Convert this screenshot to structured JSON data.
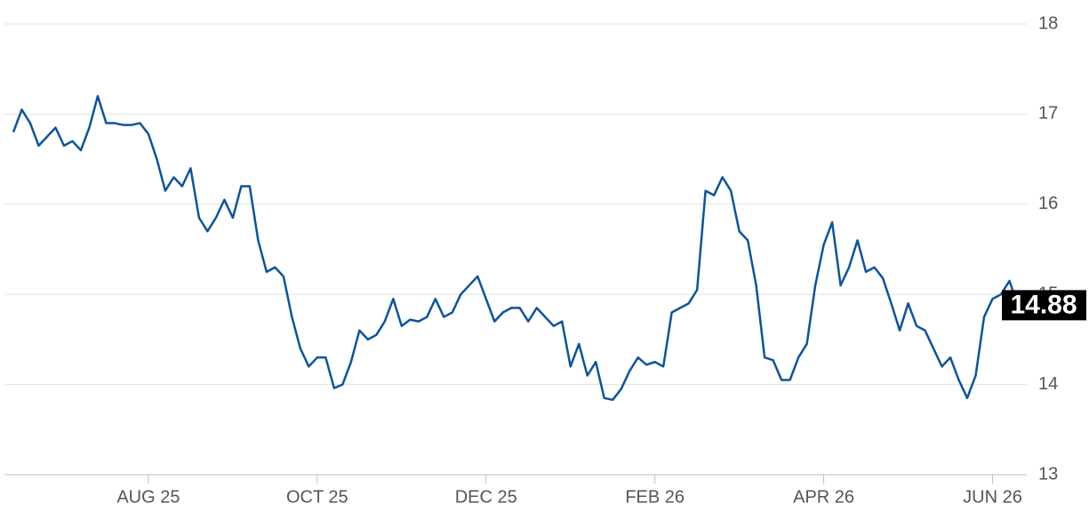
{
  "chart_data": {
    "type": "line",
    "categories": [
      null,
      null,
      null,
      null,
      null,
      null,
      null,
      null,
      null,
      null,
      null,
      null,
      null,
      null,
      null,
      null,
      "AUG 25",
      null,
      null,
      null,
      null,
      null,
      null,
      null,
      null,
      null,
      null,
      null,
      null,
      null,
      null,
      null,
      null,
      null,
      null,
      null,
      "OCT 25",
      null,
      null,
      null,
      null,
      null,
      null,
      null,
      null,
      null,
      null,
      null,
      null,
      null,
      null,
      null,
      null,
      null,
      null,
      null,
      "DEC 25",
      null,
      null,
      null,
      null,
      null,
      null,
      null,
      null,
      null,
      null,
      null,
      null,
      null,
      null,
      null,
      null,
      null,
      null,
      null,
      "FEB 26",
      null,
      null,
      null,
      null,
      null,
      null,
      null,
      null,
      null,
      null,
      null,
      null,
      null,
      null,
      null,
      null,
      null,
      null,
      null,
      "APR 26",
      null,
      null,
      null,
      null,
      null,
      null,
      null,
      null,
      null,
      null,
      null,
      null,
      null,
      null,
      null,
      null,
      null,
      null,
      null,
      "JUN 26",
      null,
      null,
      null
    ],
    "series": [
      {
        "color": "#0b549e",
        "values": [
          16.8,
          17.05,
          16.9,
          16.65,
          16.75,
          16.85,
          16.65,
          16.7,
          16.6,
          16.85,
          17.2,
          16.9,
          16.9,
          16.88,
          16.88,
          16.9,
          16.78,
          16.5,
          16.15,
          16.3,
          16.2,
          16.4,
          15.85,
          15.7,
          15.85,
          16.05,
          15.85,
          16.2,
          16.2,
          15.6,
          15.25,
          15.3,
          15.2,
          14.75,
          14.4,
          14.2,
          14.3,
          14.3,
          13.96,
          14.0,
          14.25,
          14.6,
          14.5,
          14.55,
          14.7,
          14.95,
          14.65,
          14.72,
          14.7,
          14.75,
          14.95,
          14.75,
          14.8,
          15.0,
          15.1,
          15.2,
          14.95,
          14.7,
          14.8,
          14.85,
          14.85,
          14.7,
          14.85,
          14.75,
          14.65,
          14.7,
          14.2,
          14.45,
          14.1,
          14.25,
          13.85,
          13.83,
          13.95,
          14.15,
          14.3,
          14.22,
          14.25,
          14.2,
          14.8,
          14.85,
          14.9,
          15.05,
          16.15,
          16.1,
          16.3,
          16.15,
          15.7,
          15.6,
          15.1,
          14.3,
          14.27,
          14.05,
          14.05,
          14.3,
          14.45,
          15.1,
          15.55,
          15.8,
          15.1,
          15.3,
          15.6,
          15.25,
          15.3,
          15.18,
          14.9,
          14.6,
          14.9,
          14.65,
          14.6,
          14.4,
          14.2,
          14.3,
          14.05,
          13.85,
          14.1,
          14.75,
          14.95,
          15.0,
          15.15,
          14.88
        ]
      }
    ],
    "ylim": [
      13,
      18
    ],
    "yticks": [
      13,
      14,
      15,
      16,
      17,
      18
    ],
    "grid": true
  }
}
